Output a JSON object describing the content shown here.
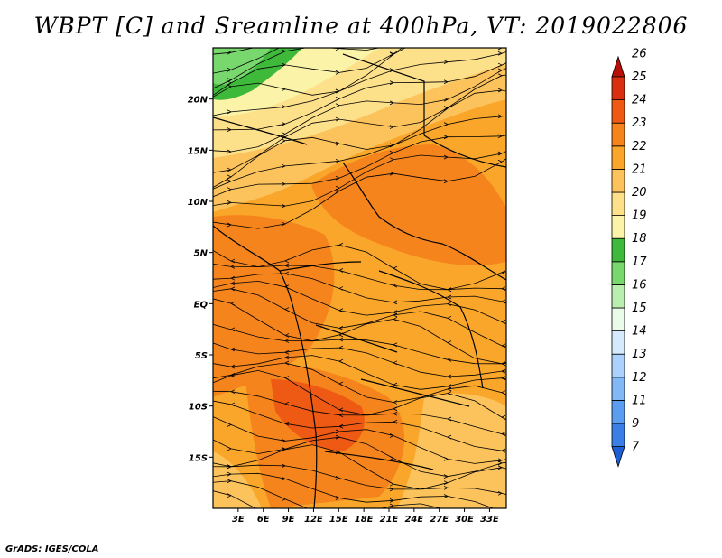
{
  "title": "WBPT [C] and Sreamline at 400hPa, VT: 2019022806",
  "credit": "GrADS: IGES/COLA",
  "map": {
    "lon_range": [
      0,
      35
    ],
    "lat_range": [
      -20,
      25
    ],
    "lon_ticks": [
      "3E",
      "6E",
      "9E",
      "12E",
      "15E",
      "18E",
      "21E",
      "24E",
      "27E",
      "30E",
      "33E"
    ],
    "lon_tick_values": [
      3,
      6,
      9,
      12,
      15,
      18,
      21,
      24,
      27,
      30,
      33
    ],
    "lat_ticks": [
      "20N",
      "15N",
      "10N",
      "5N",
      "EQ",
      "5S",
      "10S",
      "15S"
    ],
    "lat_tick_values": [
      20,
      15,
      10,
      5,
      0,
      -5,
      -10,
      -15
    ]
  },
  "colorbar": {
    "labels": [
      "7",
      "9",
      "11",
      "12",
      "13",
      "14",
      "15",
      "16",
      "17",
      "18",
      "19",
      "20",
      "21",
      "22",
      "23",
      "24",
      "25",
      "26"
    ],
    "colors": [
      "#1f5fd6",
      "#3a7fe6",
      "#5b9ef0",
      "#82b8f5",
      "#acd1fa",
      "#d5eafc",
      "#eafbea",
      "#b9eeb0",
      "#78d86e",
      "#3fb93a",
      "#fbf3a8",
      "#fde08a",
      "#fcc35c",
      "#f9a62a",
      "#f5841d",
      "#ee5a14",
      "#d92e10",
      "#b81008"
    ]
  }
}
